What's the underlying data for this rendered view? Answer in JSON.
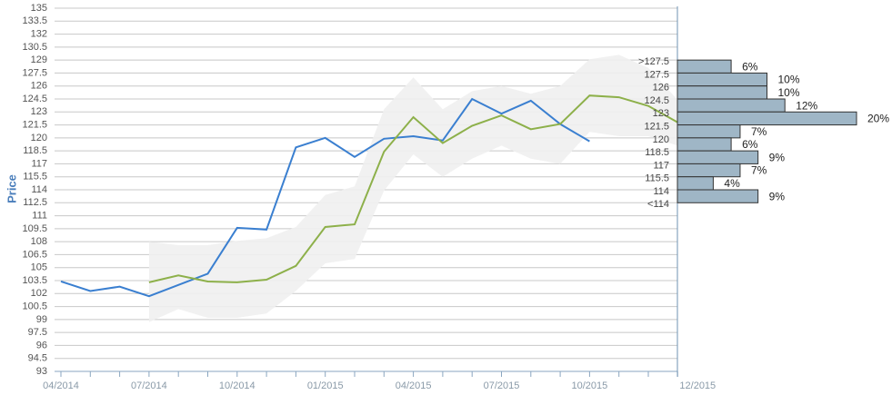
{
  "chart_data": [
    {
      "type": "line",
      "ylabel": "Price",
      "categories": [
        "04/2014",
        null,
        null,
        "07/2014",
        null,
        null,
        "10/2014",
        null,
        null,
        "01/2015",
        null,
        null,
        "04/2015",
        null,
        null,
        "07/2015",
        null,
        null,
        "10/2015",
        null,
        null,
        "12/2015"
      ],
      "ylim": [
        93,
        135
      ],
      "yticks": [
        93,
        94.5,
        96,
        97.5,
        99,
        100.5,
        102,
        103.5,
        105,
        106.5,
        108,
        109.5,
        111,
        112.5,
        114,
        115.5,
        117,
        118.5,
        120,
        121.5,
        123,
        124.5,
        126,
        127.5,
        129,
        130.5,
        132,
        133.5,
        135
      ],
      "grid": true,
      "band": {
        "color": "#efefef",
        "lower": [
          null,
          null,
          null,
          98.7,
          100.2,
          99.2,
          99.2,
          99.7,
          102.3,
          105.5,
          106,
          113.9,
          118.1,
          115.5,
          117.6,
          119.1,
          117.6,
          117,
          120.7,
          120.2,
          120.2,
          119.1
        ],
        "upper": [
          null,
          null,
          null,
          108,
          107.6,
          107.6,
          108.1,
          108.4,
          109.7,
          113.4,
          114.4,
          123.3,
          127,
          123.3,
          125.4,
          126,
          125.1,
          126,
          129.1,
          129.6,
          128.1,
          124.4
        ]
      },
      "series": [
        {
          "color": "#3a7fd0",
          "values": [
            103.4,
            102.3,
            102.8,
            101.7,
            103,
            104.3,
            109.6,
            109.4,
            118.9,
            120,
            117.8,
            119.9,
            120.2,
            119.7,
            124.5,
            122.8,
            124.3,
            121.6,
            119.6,
            null,
            null,
            null
          ]
        },
        {
          "color": "#8db04a",
          "values": [
            null,
            null,
            null,
            103.3,
            104.1,
            103.4,
            103.3,
            103.6,
            105.2,
            109.7,
            110,
            118.4,
            122.4,
            119.4,
            121.4,
            122.6,
            121,
            121.6,
            124.9,
            124.7,
            123.7,
            121.8
          ]
        }
      ]
    },
    {
      "type": "histogram",
      "orientation": "horizontal",
      "color": "#9fb6c6",
      "xlim": [
        0,
        20
      ],
      "bins": [
        {
          "value": 129,
          "label": ">127.5"
        },
        127.5,
        126,
        124.5,
        123,
        121.5,
        120,
        118.5,
        117,
        115.5,
        114,
        {
          "value": 112.5,
          "label": "<114"
        }
      ],
      "values": [
        6,
        10,
        10,
        12,
        20,
        7,
        6,
        9,
        7,
        4,
        9
      ],
      "value_labels": [
        "6%",
        "10%",
        "10%",
        "12%",
        "20%",
        "7%",
        "6%",
        "9%",
        "7%",
        "4%",
        "9%"
      ]
    }
  ]
}
